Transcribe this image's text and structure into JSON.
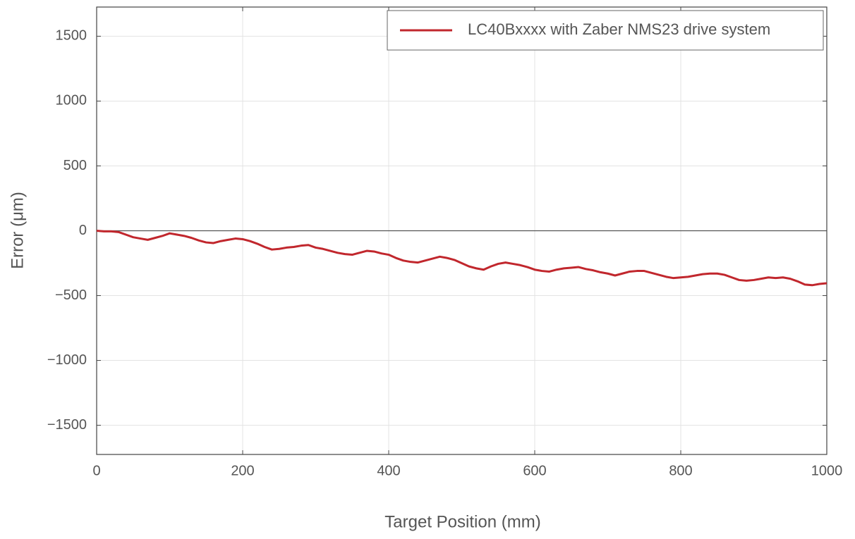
{
  "chart_data": {
    "type": "line",
    "xlabel": "Target Position (mm)",
    "ylabel": "Error (μm)",
    "x": [
      0,
      10,
      20,
      30,
      40,
      50,
      60,
      70,
      80,
      90,
      100,
      110,
      120,
      130,
      140,
      150,
      160,
      170,
      180,
      190,
      200,
      210,
      220,
      230,
      240,
      250,
      260,
      270,
      280,
      290,
      300,
      310,
      320,
      330,
      340,
      350,
      360,
      370,
      380,
      390,
      400,
      410,
      420,
      430,
      440,
      450,
      460,
      470,
      480,
      490,
      500,
      510,
      520,
      530,
      540,
      550,
      560,
      570,
      580,
      590,
      600,
      610,
      620,
      630,
      640,
      650,
      660,
      670,
      680,
      690,
      700,
      710,
      720,
      730,
      740,
      750,
      760,
      770,
      780,
      790,
      800,
      810,
      820,
      830,
      840,
      850,
      860,
      870,
      880,
      890,
      900,
      910,
      920,
      930,
      940,
      950,
      960,
      970,
      980,
      990,
      1000
    ],
    "series": [
      {
        "name": "LC40Bxxxx with Zaber NMS23 drive system",
        "color": "#c1272d",
        "values": [
          0,
          -5,
          -5,
          -10,
          -30,
          -50,
          -60,
          -70,
          -55,
          -40,
          -20,
          -30,
          -40,
          -55,
          -75,
          -90,
          -95,
          -80,
          -70,
          -60,
          -65,
          -80,
          -100,
          -125,
          -145,
          -140,
          -130,
          -125,
          -115,
          -110,
          -130,
          -140,
          -155,
          -170,
          -180,
          -185,
          -170,
          -155,
          -160,
          -175,
          -185,
          -210,
          -230,
          -240,
          -245,
          -230,
          -215,
          -200,
          -210,
          -225,
          -250,
          -275,
          -290,
          -300,
          -275,
          -255,
          -245,
          -255,
          -265,
          -280,
          -300,
          -310,
          -315,
          -300,
          -290,
          -285,
          -280,
          -295,
          -305,
          -320,
          -330,
          -345,
          -330,
          -315,
          -310,
          -310,
          -325,
          -340,
          -355,
          -365,
          -360,
          -355,
          -345,
          -335,
          -330,
          -330,
          -340,
          -360,
          -380,
          -385,
          -380,
          -370,
          -360,
          -365,
          -360,
          -370,
          -390,
          -415,
          -420,
          -410,
          -405
        ]
      }
    ],
    "xlim": [
      0,
      1000
    ],
    "xticks": [
      0,
      200,
      400,
      600,
      800,
      1000
    ],
    "ylim": [
      -1725,
      1725
    ],
    "yticks": [
      {
        "value": -1500,
        "label": "−1500"
      },
      {
        "value": -1000,
        "label": "−1000"
      },
      {
        "value": -500,
        "label": "−500"
      },
      0,
      500,
      1000,
      1500
    ],
    "grid": true,
    "legend": "upper right"
  }
}
